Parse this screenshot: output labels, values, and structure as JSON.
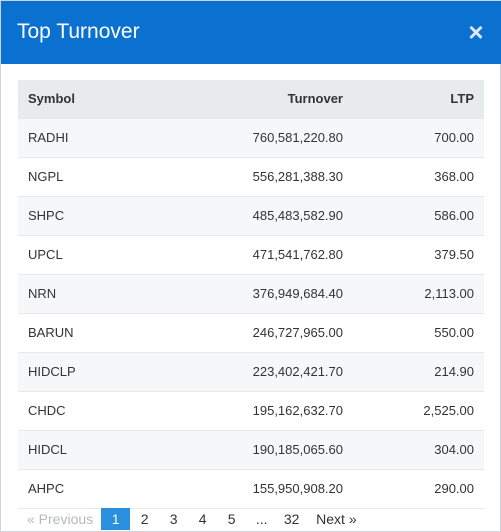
{
  "modal": {
    "title": "Top Turnover",
    "close_glyph": "×"
  },
  "table": {
    "headers": {
      "symbol": "Symbol",
      "turnover": "Turnover",
      "ltp": "LTP"
    },
    "rows": [
      {
        "symbol": "RADHI",
        "turnover": "760,581,220.80",
        "ltp": "700.00"
      },
      {
        "symbol": "NGPL",
        "turnover": "556,281,388.30",
        "ltp": "368.00"
      },
      {
        "symbol": "SHPC",
        "turnover": "485,483,582.90",
        "ltp": "586.00"
      },
      {
        "symbol": "UPCL",
        "turnover": "471,541,762.80",
        "ltp": "379.50"
      },
      {
        "symbol": "NRN",
        "turnover": "376,949,684.40",
        "ltp": "2,113.00"
      },
      {
        "symbol": "BARUN",
        "turnover": "246,727,965.00",
        "ltp": "550.00"
      },
      {
        "symbol": "HIDCLP",
        "turnover": "223,402,421.70",
        "ltp": "214.90"
      },
      {
        "symbol": "CHDC",
        "turnover": "195,162,632.70",
        "ltp": "2,525.00"
      },
      {
        "symbol": "HIDCL",
        "turnover": "190,185,065.60",
        "ltp": "304.00"
      },
      {
        "symbol": "AHPC",
        "turnover": "155,950,908.20",
        "ltp": "290.00"
      }
    ]
  },
  "pagination": {
    "previous": "« Previous",
    "pages": [
      "1",
      "2",
      "3",
      "4",
      "5"
    ],
    "ellipsis": "...",
    "last": "32",
    "next": "Next »",
    "active_page": "1"
  },
  "colors": {
    "header_bg": "#0a71d1",
    "active_page_bg": "#2b8fe0"
  },
  "icons": {
    "close": "close-icon"
  }
}
